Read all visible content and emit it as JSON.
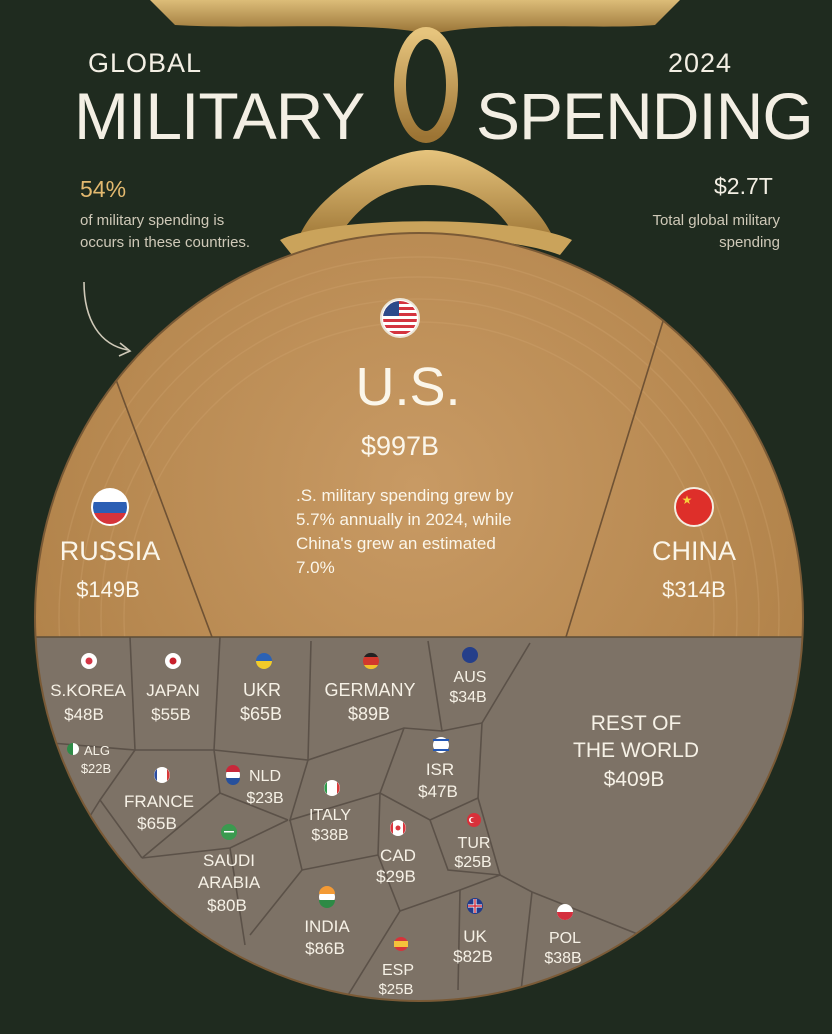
{
  "header": {
    "title_line1": "GLOBAL",
    "title_main": "MILITARY",
    "year": "2024",
    "title_main2": "SPENDING"
  },
  "annotations": {
    "share_value": "54%",
    "share_text": "of military spending is occurs in these countries.",
    "total_value": "$2.7T",
    "total_text": "Total global military spending",
    "us_note": ".S. military spending grew by 5.7% annually in 2024, while China's grew an estimated 7.0%"
  },
  "colors": {
    "background": "#1f2b1f",
    "gold_medal": "#b98a54",
    "gray_section": "#7d7266",
    "gold_clasp": "#c9a25a"
  },
  "chart_data": {
    "type": "voronoi-treemap",
    "title": "GLOBAL MILITARY SPENDING 2024",
    "unit": "billion USD",
    "total_label": "$2.7T",
    "major": [
      {
        "name": "U.S.",
        "label": "$997B",
        "value": 997,
        "flag": "us-flag-icon"
      },
      {
        "name": "RUSSIA",
        "label": "$149B",
        "value": 149,
        "flag": "russia-flag-icon"
      },
      {
        "name": "CHINA",
        "label": "$314B",
        "value": 314,
        "flag": "china-flag-icon"
      }
    ],
    "others": [
      {
        "id": "skor",
        "name": "S.KOREA",
        "label": "$48B",
        "value": 48
      },
      {
        "id": "jpn",
        "name": "JAPAN",
        "label": "$55B",
        "value": 55
      },
      {
        "id": "ukr",
        "name": "UKR",
        "label": "$65B",
        "value": 65
      },
      {
        "id": "ger",
        "name": "GERMANY",
        "label": "$89B",
        "value": 89
      },
      {
        "id": "aus",
        "name": "AUS",
        "label": "$34B",
        "value": 34
      },
      {
        "id": "row",
        "name_lines": [
          "REST OF",
          "THE WORLD"
        ],
        "label": "$409B",
        "value": 409
      },
      {
        "id": "alg",
        "name": "ALG",
        "label": "$22B",
        "value": 22
      },
      {
        "id": "fra",
        "name": "FRANCE",
        "label": "$65B",
        "value": 65
      },
      {
        "id": "nld",
        "name": "NLD",
        "label": "$23B",
        "value": 23
      },
      {
        "id": "isr",
        "name": "ISR",
        "label": "$47B",
        "value": 47
      },
      {
        "id": "ita",
        "name": "ITALY",
        "label": "$38B",
        "value": 38
      },
      {
        "id": "sau",
        "name_lines": [
          "SAUDI",
          "ARABIA"
        ],
        "label": "$80B",
        "value": 80
      },
      {
        "id": "cad",
        "name": "CAD",
        "label": "$29B",
        "value": 29
      },
      {
        "id": "tur",
        "name": "TUR",
        "label": "$25B",
        "value": 25
      },
      {
        "id": "ind",
        "name": "INDIA",
        "label": "$86B",
        "value": 86
      },
      {
        "id": "uk",
        "name": "UK",
        "label": "$82B",
        "value": 82
      },
      {
        "id": "pol",
        "name": "POL",
        "label": "$38B",
        "value": 38
      },
      {
        "id": "esp",
        "name": "ESP",
        "label": "$25B",
        "value": 25
      }
    ]
  }
}
